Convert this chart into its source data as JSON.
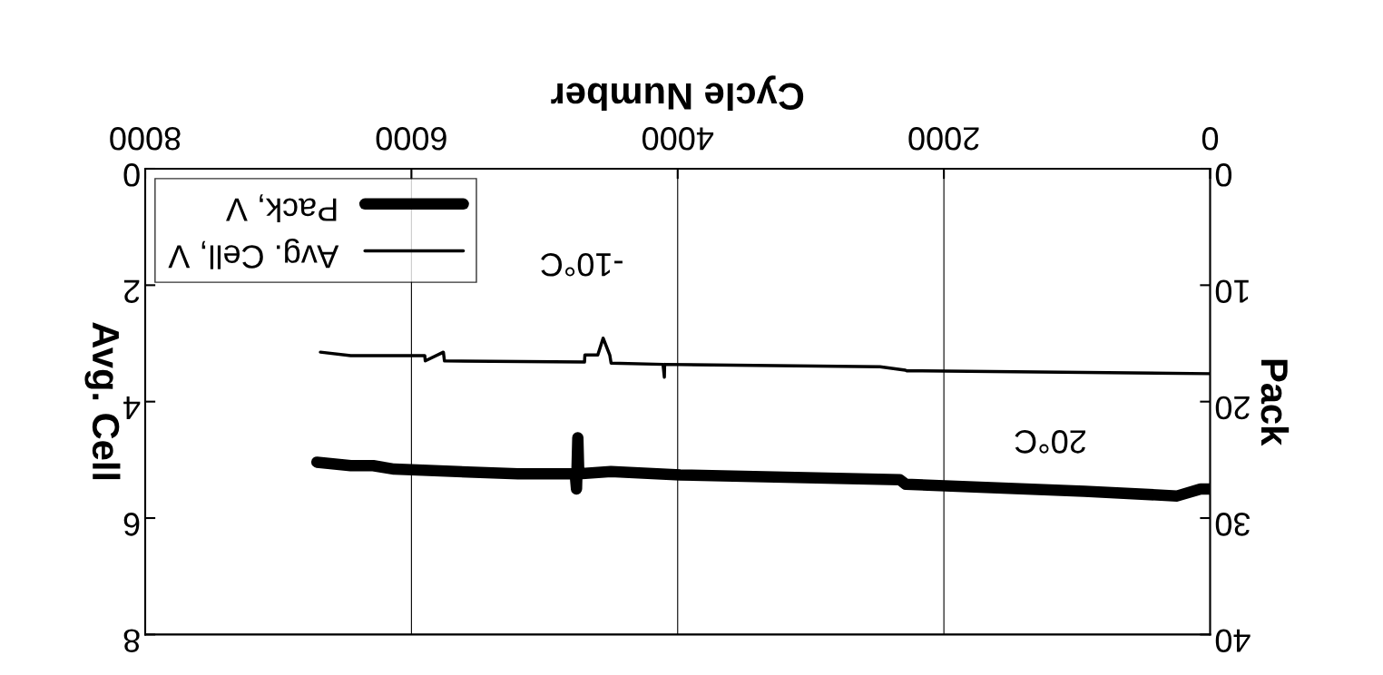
{
  "chart_data": {
    "type": "line",
    "xlabel": "Cycle Number",
    "ylabel": "Avg. Cell",
    "y2label": "Pack",
    "x": [
      0,
      2280,
      2290,
      2480,
      4098,
      4100,
      4110,
      4500,
      4510,
      4560,
      4600,
      4697,
      4700,
      5752,
      5760,
      5896,
      5900,
      6046,
      6456,
      6684
    ],
    "series": [
      {
        "name": "Avg. Cell, V",
        "color": "#000000",
        "values": [
          3.52,
          3.47,
          3.46,
          3.4,
          3.36,
          3.58,
          3.36,
          3.34,
          3.2,
          2.91,
          3.2,
          3.2,
          3.32,
          3.3,
          3.15,
          3.3,
          3.21,
          3.21,
          3.21,
          3.15
        ]
      },
      {
        "name": "Pack, V",
        "color": "#000000",
        "axis": "y2",
        "x": [
          0,
          72,
          248,
          945,
          2287,
          2332,
          3980,
          4502,
          4743,
          4750,
          4760,
          4770,
          5199,
          6130,
          6287,
          6456,
          6710
        ],
        "values": [
          27.5,
          27.5,
          28.1,
          27.7,
          27.1,
          26.7,
          26.3,
          26.0,
          26.2,
          23.1,
          27.5,
          26.2,
          26.2,
          25.8,
          25.5,
          25.5,
          25.2
        ]
      }
    ],
    "xlim": [
      8000,
      0
    ],
    "xticks": [
      0,
      2000,
      4000,
      6000,
      8000
    ],
    "ylim": [
      8,
      0
    ],
    "yticks": [
      0,
      2,
      4,
      6,
      8
    ],
    "y2lim": [
      40,
      0
    ],
    "y2ticks": [
      0,
      10,
      20,
      30,
      40
    ],
    "annotations": [
      "-10°C",
      "20°C"
    ],
    "grid": "x",
    "legend": "top left",
    "line_style": "solid",
    "marker": "none"
  }
}
